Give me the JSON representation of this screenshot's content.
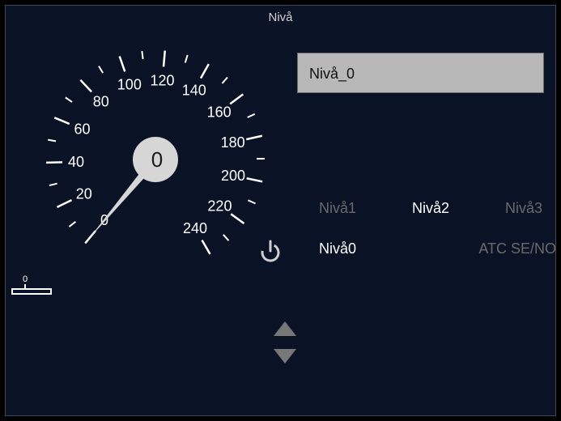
{
  "header": {
    "title": "Nivå"
  },
  "input": {
    "current_value": "Nivå_0"
  },
  "gauge": {
    "value": 0,
    "center_label": "0",
    "min": 0,
    "max": 240,
    "major_step": 20,
    "minor_per_major": 2,
    "start_angle_deg": 230,
    "end_angle_deg": -60,
    "radius_outer": 135,
    "radius_major_inner": 115,
    "radius_minor_inner": 125,
    "radius_label": 98,
    "hub_radius": 28,
    "needle_len": 130,
    "dial_color": "#ffffff",
    "text_color": "#ffffff",
    "hub_color": "#d6d6d6",
    "needle_color": "#d6d6d6",
    "center_text_color": "#1a1a1a",
    "bg_color": "#0a1225",
    "label_fontsize": 18,
    "center_fontsize": 26
  },
  "linear_gauge": {
    "label": "0",
    "bar_color": "#ffffff",
    "text_color": "#ffffff"
  },
  "levels": {
    "row1": [
      {
        "name": "niva1",
        "label": "Nivå1",
        "active": false
      },
      {
        "name": "niva2",
        "label": "Nivå2",
        "active": true
      },
      {
        "name": "niva3",
        "label": "Nivå3",
        "active": false
      }
    ],
    "row2": [
      {
        "name": "niva0",
        "label": "Nivå0",
        "active": true
      },
      {
        "name": "atc",
        "label": "ATC SE/NO",
        "active": false
      }
    ]
  },
  "icons": {
    "power_color": "#cfcfcf",
    "arrow_color": "#777777"
  }
}
